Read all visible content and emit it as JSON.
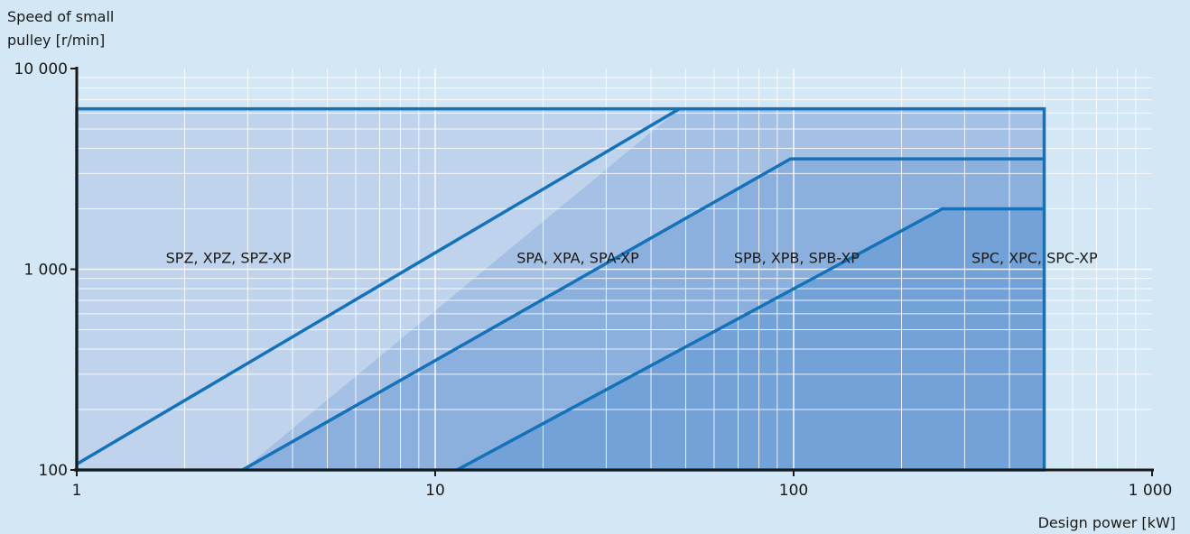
{
  "chart_data": {
    "type": "area",
    "title": "",
    "ylabel_lines": [
      "Speed of small",
      "pulley [r/min]"
    ],
    "xlabel": "Design power [kW]",
    "x_scale": "log",
    "y_scale": "log",
    "xlim": [
      1,
      1000
    ],
    "ylim": [
      100,
      10000
    ],
    "x_ticks": [
      {
        "value": 1,
        "label": "1"
      },
      {
        "value": 10,
        "label": "10"
      },
      {
        "value": 100,
        "label": "100"
      },
      {
        "value": 1000,
        "label": "1 000"
      }
    ],
    "y_ticks": [
      {
        "value": 100,
        "label": "100"
      },
      {
        "value": 1000,
        "label": "1 000"
      },
      {
        "value": 10000,
        "label": "10 000"
      }
    ],
    "grid": true,
    "colors": {
      "background": "#d3e7f5",
      "line": "#1572b8",
      "grid": "#ffffff",
      "axis": "#1a1a1a"
    },
    "series": [
      {
        "name": "SPZ, XPZ, SPZ-XP",
        "color": "#bfd4ec",
        "label_at": {
          "x": 2.65,
          "y": 1000
        },
        "polygon": [
          {
            "x": 1,
            "y": 100
          },
          {
            "x": 1,
            "y": 6300
          },
          {
            "x": 500,
            "y": 6300
          },
          {
            "x": 500,
            "y": 100
          }
        ],
        "boundary": [
          {
            "x": 1,
            "y": 107
          },
          {
            "x": 48,
            "y": 6300
          }
        ]
      },
      {
        "name": "SPA, XPA, SPA-XP",
        "color": "#a4c0e4",
        "label_at": {
          "x": 25,
          "y": 1000
        },
        "polygon": [
          {
            "x": 2.9,
            "y": 100
          },
          {
            "x": 48,
            "y": 6300
          },
          {
            "x": 500,
            "y": 6300
          },
          {
            "x": 500,
            "y": 100
          }
        ],
        "boundary": [
          {
            "x": 2.9,
            "y": 100
          },
          {
            "x": 98,
            "y": 3550
          },
          {
            "x": 500,
            "y": 3550
          }
        ]
      },
      {
        "name": "SPB, XPB, SPB-XP",
        "color": "#8cb0de",
        "label_at": {
          "x": 102,
          "y": 1000
        },
        "polygon": [
          {
            "x": 2.9,
            "y": 100
          },
          {
            "x": 98,
            "y": 3550
          },
          {
            "x": 500,
            "y": 3550
          },
          {
            "x": 500,
            "y": 100
          }
        ],
        "boundary": [
          {
            "x": 11.5,
            "y": 100
          },
          {
            "x": 260,
            "y": 2000
          },
          {
            "x": 500,
            "y": 2000
          }
        ]
      },
      {
        "name": "SPC, XPC, SPC-XP",
        "color": "#72a2d8",
        "label_at": {
          "x": 470,
          "y": 1000
        },
        "polygon": [
          {
            "x": 11.5,
            "y": 100
          },
          {
            "x": 260,
            "y": 2000
          },
          {
            "x": 500,
            "y": 2000
          },
          {
            "x": 500,
            "y": 100
          }
        ],
        "boundary": []
      }
    ],
    "outer_boundary": [
      {
        "x": 1,
        "y": 100
      },
      {
        "x": 1,
        "y": 6300
      },
      {
        "x": 500,
        "y": 6300
      },
      {
        "x": 500,
        "y": 100
      },
      {
        "x": 1,
        "y": 100
      }
    ]
  }
}
